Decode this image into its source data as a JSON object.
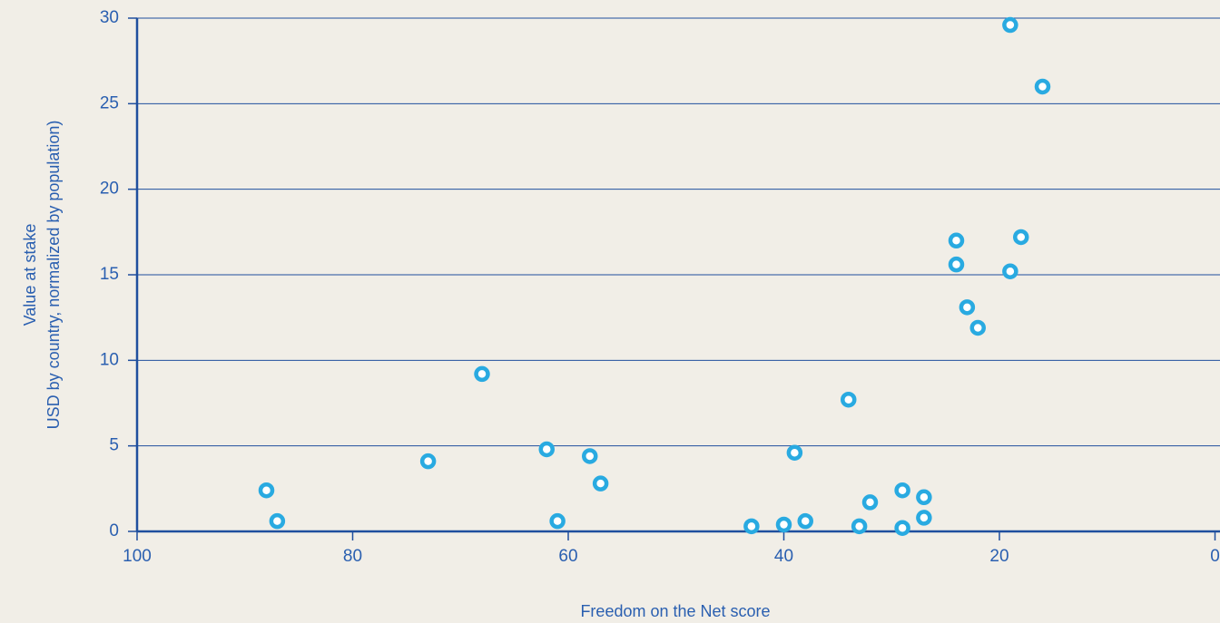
{
  "chart_data": {
    "type": "scatter",
    "x_label": "Freedom on the Net score",
    "y_label_lines": [
      "Value at stake",
      "USD by country, normalized by population)"
    ],
    "x": [
      88,
      87,
      73,
      68,
      62,
      61,
      58,
      57,
      43,
      40,
      39,
      38,
      34,
      33,
      32,
      29,
      29,
      27,
      27,
      24,
      24,
      23,
      22,
      19,
      19,
      18,
      16
    ],
    "series": [
      {
        "color": "#29aae1",
        "values": [
          2.4,
          0.6,
          4.1,
          9.2,
          4.8,
          0.6,
          4.4,
          2.8,
          0.3,
          0.4,
          4.6,
          0.6,
          7.7,
          0.3,
          1.7,
          2.4,
          0.2,
          2.0,
          0.8,
          17.0,
          15.6,
          13.1,
          11.9,
          29.6,
          15.2,
          17.2,
          26.0
        ]
      }
    ],
    "xlim": [
      100,
      0
    ],
    "xticks": [
      100,
      80,
      60,
      40,
      20,
      0
    ],
    "ylim": [
      0,
      30
    ],
    "yticks": [
      0,
      5,
      10,
      15,
      20,
      25,
      30
    ],
    "grid": true
  }
}
